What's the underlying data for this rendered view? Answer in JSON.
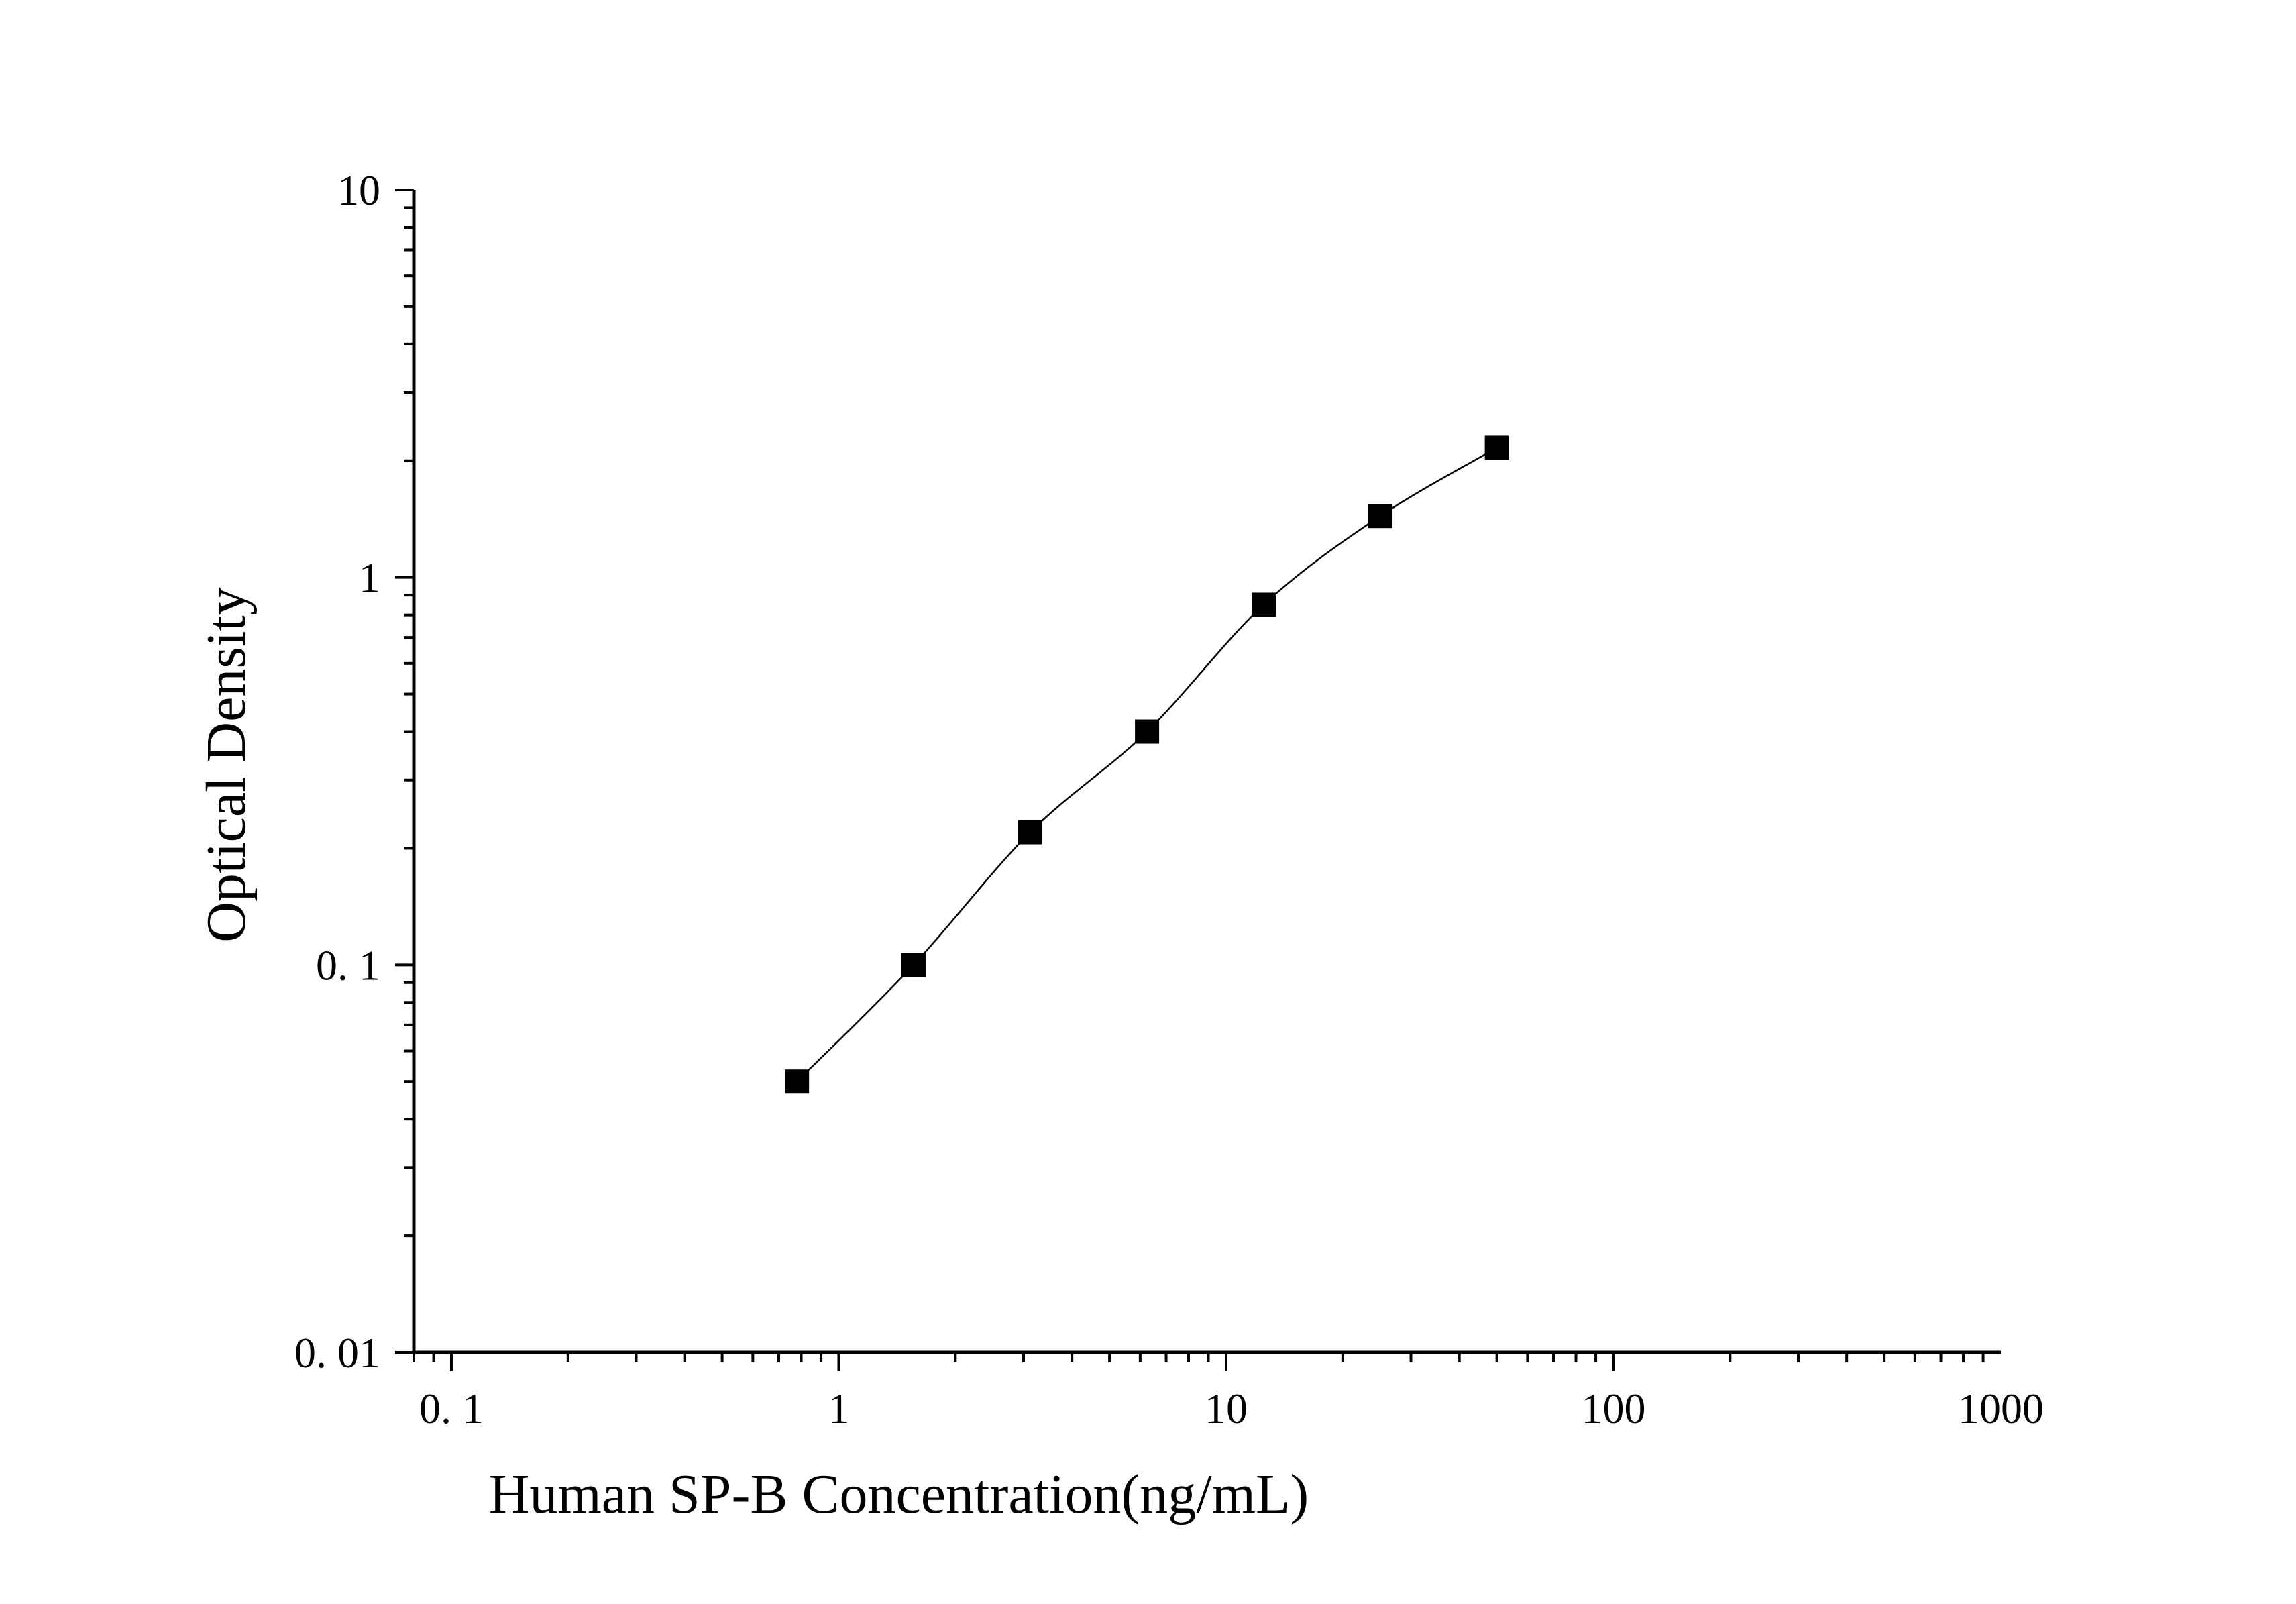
{
  "chart_data": {
    "type": "scatter",
    "xlabel": "Human SP-B Concentration(ng/mL)",
    "ylabel": "Optical Density",
    "x_scale": "log",
    "y_scale": "log",
    "xlim": [
      0.08,
      1000
    ],
    "ylim": [
      0.01,
      10
    ],
    "x_ticks": [
      {
        "value": 0.1,
        "label": "0. 1"
      },
      {
        "value": 1,
        "label": "1"
      },
      {
        "value": 10,
        "label": "10"
      },
      {
        "value": 100,
        "label": "100"
      },
      {
        "value": 1000,
        "label": "1000"
      }
    ],
    "y_ticks": [
      {
        "value": 0.01,
        "label": "0. 01"
      },
      {
        "value": 0.1,
        "label": "0. 1"
      },
      {
        "value": 1,
        "label": "1"
      },
      {
        "value": 10,
        "label": "10"
      }
    ],
    "grid": false,
    "marker": "square",
    "color": "#000000",
    "series": [
      {
        "x": [
          0.78,
          1.56,
          3.12,
          6.25,
          12.5,
          25,
          50
        ],
        "y": [
          0.05,
          0.1,
          0.22,
          0.4,
          0.85,
          1.44,
          2.16
        ]
      }
    ],
    "fit_curve": true
  }
}
